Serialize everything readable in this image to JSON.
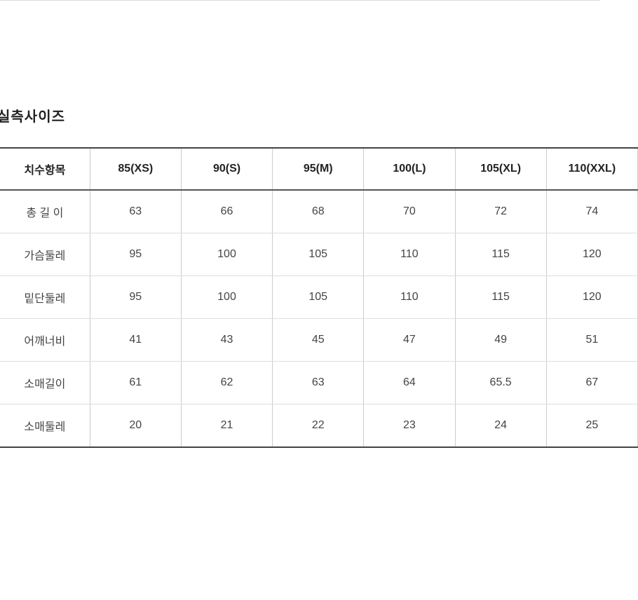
{
  "title": "실측사이즈",
  "table": {
    "headers": [
      "치수항목",
      "85(XS)",
      "90(S)",
      "95(M)",
      "100(L)",
      "105(XL)",
      "110(XXL)"
    ],
    "rows": [
      {
        "label": "총 길 이",
        "values": [
          "63",
          "66",
          "68",
          "70",
          "72",
          "74"
        ]
      },
      {
        "label": "가슴둘레",
        "values": [
          "95",
          "100",
          "105",
          "110",
          "115",
          "120"
        ]
      },
      {
        "label": "밑단둘레",
        "values": [
          "95",
          "100",
          "105",
          "110",
          "115",
          "120"
        ]
      },
      {
        "label": "어깨너비",
        "values": [
          "41",
          "43",
          "45",
          "47",
          "49",
          "51"
        ]
      },
      {
        "label": "소매길이",
        "values": [
          "61",
          "62",
          "63",
          "64",
          "65.5",
          "67"
        ]
      },
      {
        "label": "소매둘레",
        "values": [
          "20",
          "21",
          "22",
          "23",
          "24",
          "25"
        ]
      }
    ]
  }
}
